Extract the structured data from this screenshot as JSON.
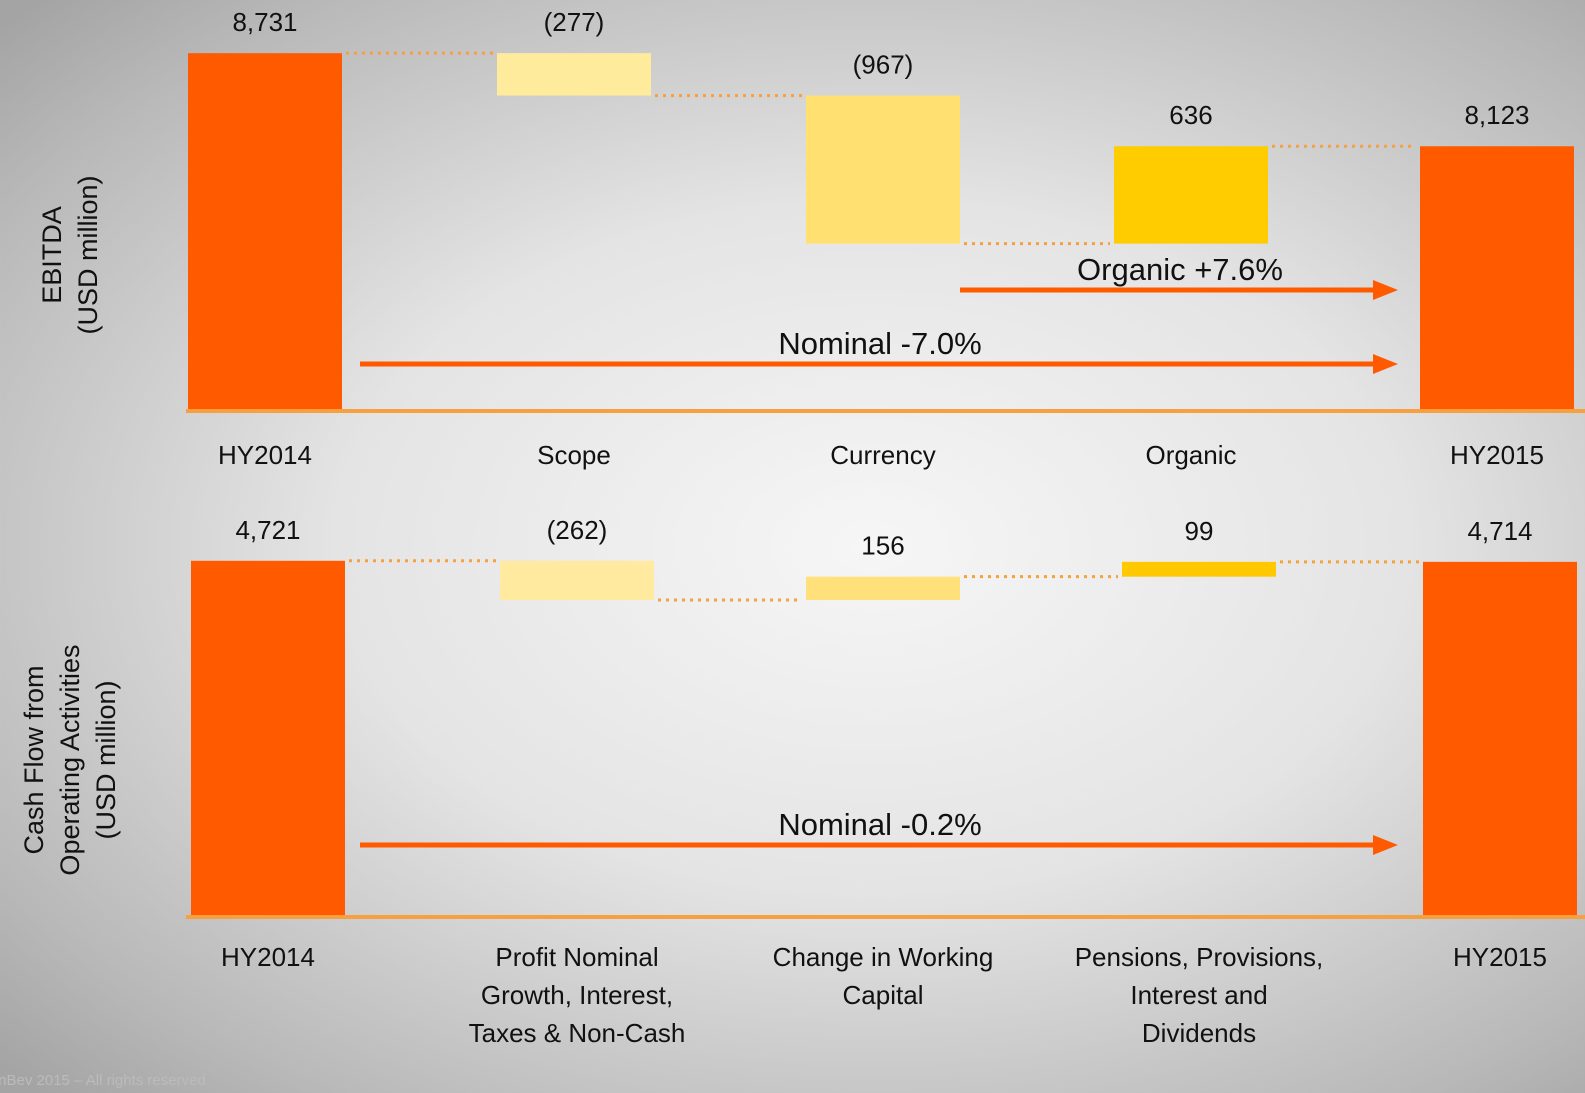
{
  "chart_data": [
    {
      "type": "waterfall",
      "ylabel": [
        "EBITDA",
        "(USD million)"
      ],
      "categories": [
        "HY2014",
        "Scope",
        "Currency",
        "Organic",
        "HY2015"
      ],
      "measure": [
        "absolute",
        "relative",
        "relative",
        "relative",
        "absolute"
      ],
      "values": [
        8731,
        -277,
        -967,
        636,
        8123
      ],
      "value_labels": [
        "8,731",
        "(277)",
        "(967)",
        "636",
        "8,123"
      ],
      "colors": [
        "#ff5a00",
        "#ffeb9c",
        "#ffe070",
        "#ffcc00",
        "#ff5a00"
      ],
      "ylim": [
        6400,
        9000
      ],
      "annotations": [
        "Organic +7.6%",
        "Nominal -7.0%"
      ]
    },
    {
      "type": "waterfall",
      "ylabel": [
        "Cash Flow from",
        "Operating Activities",
        "(USD million)"
      ],
      "categories": [
        "HY2014",
        "Profit Nominal Growth, Interest, Taxes & Non-Cash",
        "Change in Working Capital",
        "Pensions, Provisions, Interest and Dividends",
        "HY2015"
      ],
      "measure": [
        "absolute",
        "relative",
        "relative",
        "relative",
        "absolute"
      ],
      "values": [
        4721,
        -262,
        156,
        99,
        4714
      ],
      "value_labels": [
        "4,721",
        "(262)",
        "156",
        "99",
        "4,714"
      ],
      "colors": [
        "#ff5a00",
        "#ffeaa0",
        "#ffe07a",
        "#ffc800",
        "#ff5a00"
      ],
      "ylim": [
        2350,
        5000
      ],
      "annotations": [
        "Nominal -0.2%"
      ]
    }
  ],
  "footer": "InBev 2015 – All rights reserved"
}
